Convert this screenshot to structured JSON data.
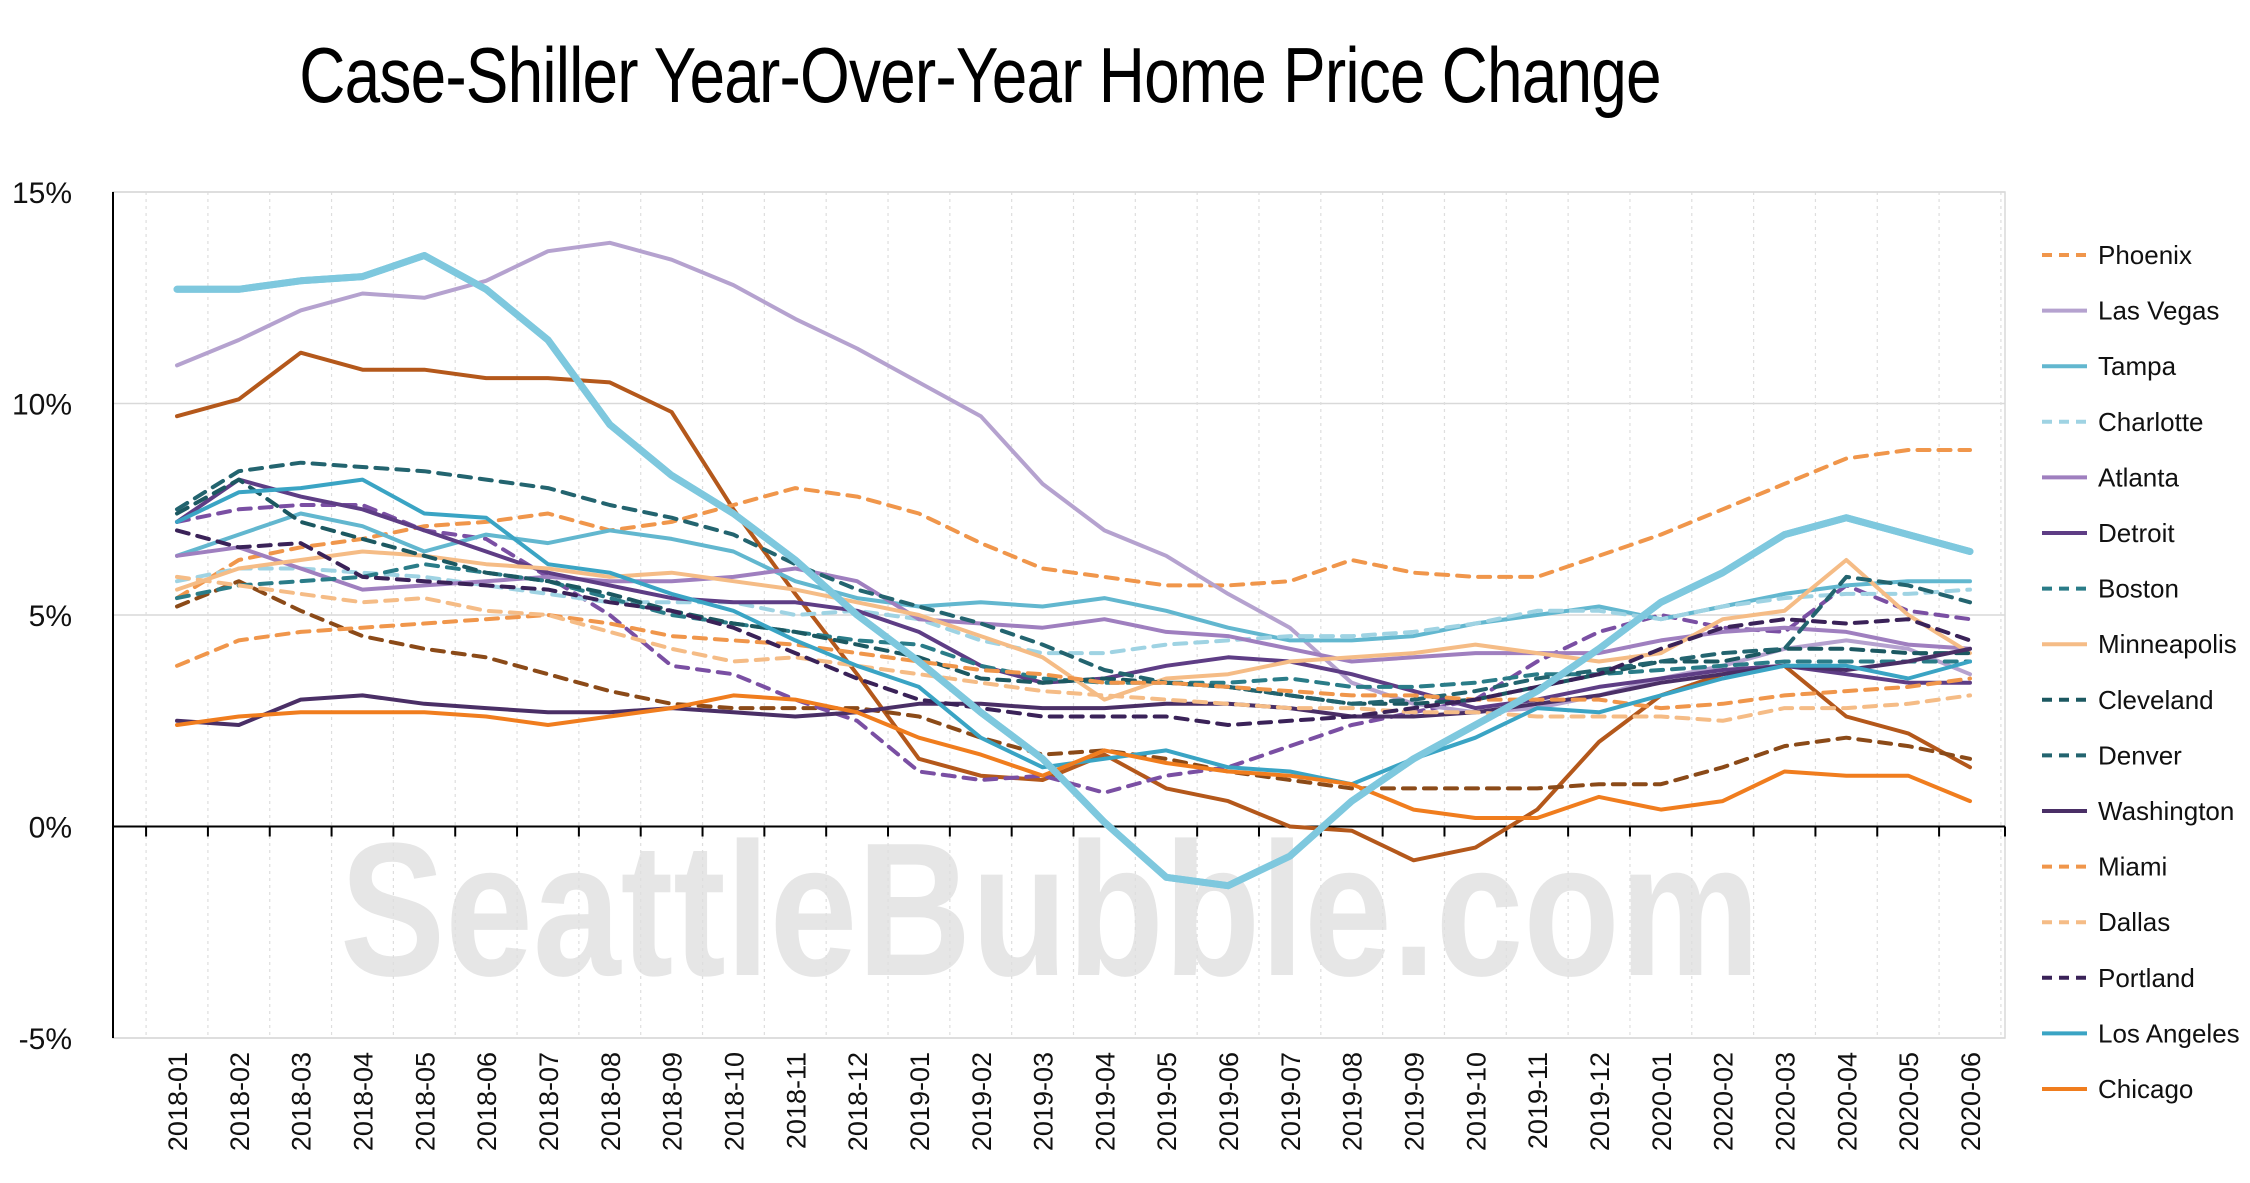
{
  "chart_data": {
    "type": "line",
    "title": "Case-Shiller Year-Over-Year Home Price Change",
    "watermark": "SeattleBubble.com",
    "xlabel": "",
    "ylabel": "",
    "ylim": [
      -5,
      15
    ],
    "y_ticks": [
      "15%",
      "10%",
      "5%",
      "0%",
      "-5%"
    ],
    "grid": true,
    "legend_position": "right",
    "categories": [
      "2018-01",
      "2018-02",
      "2018-03",
      "2018-04",
      "2018-05",
      "2018-06",
      "2018-07",
      "2018-08",
      "2018-09",
      "2018-10",
      "2018-11",
      "2018-12",
      "2019-01",
      "2019-02",
      "2019-03",
      "2019-04",
      "2019-05",
      "2019-06",
      "2019-07",
      "2019-08",
      "2019-09",
      "2019-10",
      "2019-11",
      "2019-12",
      "2020-01",
      "2020-02",
      "2020-03",
      "2020-04",
      "2020-05",
      "2020-06"
    ],
    "series": [
      {
        "name": "Phoenix",
        "color": "#f0964b",
        "style": "dashed",
        "values": [
          5.4,
          6.3,
          6.6,
          6.8,
          7.1,
          7.2,
          7.4,
          7.0,
          7.2,
          7.6,
          8.0,
          7.8,
          7.4,
          6.7,
          6.1,
          5.9,
          5.7,
          5.7,
          5.8,
          6.3,
          6.0,
          5.9,
          5.9,
          6.4,
          6.9,
          7.5,
          8.1,
          8.7,
          8.9,
          8.9
        ]
      },
      {
        "name": "Las Vegas",
        "color": "#b5a2cf",
        "style": "solid",
        "values": [
          10.9,
          11.5,
          12.2,
          12.6,
          12.5,
          12.9,
          13.6,
          13.8,
          13.4,
          12.8,
          12.0,
          11.3,
          10.5,
          9.7,
          8.1,
          7.0,
          6.4,
          5.5,
          4.7,
          3.4,
          2.9,
          2.7,
          2.8,
          3.1,
          3.5,
          3.8,
          4.2,
          4.4,
          4.2,
          3.6
        ]
      },
      {
        "name": "Tampa",
        "color": "#62b7cf",
        "style": "solid",
        "values": [
          6.4,
          6.9,
          7.4,
          7.1,
          6.5,
          6.9,
          6.7,
          7.0,
          6.8,
          6.5,
          5.8,
          5.4,
          5.2,
          5.3,
          5.2,
          5.4,
          5.1,
          4.7,
          4.4,
          4.4,
          4.5,
          4.8,
          5.0,
          5.2,
          4.9,
          5.2,
          5.5,
          5.7,
          5.8,
          5.8
        ]
      },
      {
        "name": "Charlotte",
        "color": "#9fd3e3",
        "style": "dashed",
        "values": [
          5.8,
          6.1,
          6.1,
          6.0,
          5.9,
          5.7,
          5.5,
          5.3,
          5.3,
          5.3,
          5.0,
          5.1,
          4.9,
          4.4,
          4.1,
          4.1,
          4.3,
          4.4,
          4.5,
          4.5,
          4.6,
          4.8,
          5.1,
          5.1,
          4.9,
          5.2,
          5.4,
          5.5,
          5.5,
          5.6
        ]
      },
      {
        "name": "Atlanta",
        "color": "#9f7fbf",
        "style": "solid",
        "values": [
          6.4,
          6.6,
          6.1,
          5.6,
          5.7,
          5.8,
          5.9,
          5.8,
          5.8,
          5.9,
          6.1,
          5.8,
          4.9,
          4.8,
          4.7,
          4.9,
          4.6,
          4.5,
          4.2,
          3.9,
          4.0,
          4.1,
          4.1,
          4.1,
          4.4,
          4.6,
          4.7,
          4.6,
          4.3,
          4.2
        ]
      },
      {
        "name": "Detroit",
        "color": "#5e3d85",
        "style": "solid",
        "values": [
          7.2,
          8.2,
          7.8,
          7.5,
          7.0,
          6.5,
          6.0,
          5.7,
          5.4,
          5.3,
          5.3,
          5.1,
          4.6,
          3.8,
          3.4,
          3.5,
          3.8,
          4.0,
          3.9,
          3.6,
          3.2,
          2.8,
          3.0,
          3.3,
          3.5,
          3.7,
          3.8,
          3.6,
          3.4,
          3.4
        ]
      },
      {
        "name": "Boston",
        "color": "#2a7c88",
        "style": "dashed",
        "values": [
          5.4,
          5.7,
          5.8,
          5.9,
          6.2,
          6.0,
          5.8,
          5.4,
          5.0,
          4.8,
          4.6,
          4.4,
          4.3,
          3.8,
          3.5,
          3.4,
          3.4,
          3.4,
          3.5,
          3.3,
          3.3,
          3.4,
          3.6,
          3.6,
          3.7,
          3.8,
          3.9,
          3.9,
          3.9,
          3.9
        ]
      },
      {
        "name": "Minneapolis",
        "color": "#f5bc86",
        "style": "solid",
        "values": [
          5.6,
          6.1,
          6.3,
          6.5,
          6.4,
          6.2,
          6.1,
          5.9,
          6.0,
          5.8,
          5.6,
          5.3,
          5.0,
          4.5,
          4.0,
          3.0,
          3.5,
          3.6,
          3.9,
          4.0,
          4.1,
          4.3,
          4.1,
          3.9,
          4.1,
          4.9,
          5.1,
          6.3,
          5.0,
          4.1
        ]
      },
      {
        "name": "Cleveland",
        "color": "#1c5861",
        "style": "dashed",
        "values": [
          7.4,
          8.2,
          7.2,
          6.8,
          6.4,
          6.0,
          5.8,
          5.5,
          5.1,
          4.8,
          4.6,
          4.3,
          4.0,
          3.5,
          3.4,
          3.5,
          3.4,
          3.3,
          3.1,
          2.9,
          2.9,
          3.0,
          3.3,
          3.6,
          3.9,
          3.9,
          4.2,
          4.2,
          4.1,
          4.1
        ]
      },
      {
        "name": "Denver",
        "color": "#23646f",
        "style": "dashed",
        "values": [
          7.5,
          8.4,
          8.6,
          8.5,
          8.4,
          8.2,
          8.0,
          7.6,
          7.3,
          6.9,
          6.2,
          5.6,
          5.2,
          4.8,
          4.3,
          3.7,
          3.4,
          3.3,
          3.1,
          2.9,
          3.0,
          3.2,
          3.5,
          3.7,
          3.9,
          4.1,
          4.2,
          5.9,
          5.7,
          5.3
        ]
      },
      {
        "name": "Washington",
        "color": "#4a2f66",
        "style": "solid",
        "values": [
          2.5,
          2.4,
          3.0,
          3.1,
          2.9,
          2.8,
          2.7,
          2.7,
          2.8,
          2.7,
          2.6,
          2.7,
          2.9,
          2.9,
          2.8,
          2.8,
          2.9,
          2.9,
          2.8,
          2.6,
          2.6,
          2.7,
          2.9,
          3.1,
          3.4,
          3.6,
          3.8,
          3.7,
          3.9,
          4.2
        ]
      },
      {
        "name": "Miami",
        "color": "#f0964b",
        "style": "dashed",
        "values": [
          3.8,
          4.4,
          4.6,
          4.7,
          4.8,
          4.9,
          5.0,
          4.8,
          4.5,
          4.4,
          4.3,
          4.1,
          3.9,
          3.7,
          3.6,
          3.4,
          3.4,
          3.3,
          3.2,
          3.1,
          3.1,
          3.0,
          3.0,
          3.0,
          2.8,
          2.9,
          3.1,
          3.2,
          3.3,
          3.5
        ]
      },
      {
        "name": "Dallas",
        "color": "#f5bc86",
        "style": "dashed",
        "values": [
          5.9,
          5.7,
          5.5,
          5.3,
          5.4,
          5.1,
          5.0,
          4.6,
          4.2,
          3.9,
          4.0,
          3.8,
          3.6,
          3.4,
          3.2,
          3.1,
          3.0,
          2.9,
          2.8,
          2.8,
          2.7,
          2.7,
          2.6,
          2.6,
          2.6,
          2.5,
          2.8,
          2.8,
          2.9,
          3.1
        ]
      },
      {
        "name": "Portland",
        "color": "#3a2258",
        "style": "dashed",
        "values": [
          7.0,
          6.6,
          6.7,
          5.9,
          5.8,
          5.7,
          5.6,
          5.3,
          5.1,
          4.7,
          4.1,
          3.5,
          3.0,
          2.8,
          2.6,
          2.6,
          2.6,
          2.4,
          2.5,
          2.6,
          2.8,
          3.0,
          3.3,
          3.6,
          4.2,
          4.7,
          4.9,
          4.8,
          4.9,
          4.4
        ]
      },
      {
        "name": "Los Angeles",
        "color": "#3aa4c4",
        "style": "solid",
        "values": [
          7.2,
          7.9,
          8.0,
          8.2,
          7.4,
          7.3,
          6.2,
          6.0,
          5.5,
          5.1,
          4.4,
          3.8,
          3.3,
          2.1,
          1.4,
          1.6,
          1.8,
          1.4,
          1.3,
          1.0,
          1.6,
          2.1,
          2.8,
          2.7,
          3.1,
          3.5,
          3.8,
          3.8,
          3.5,
          3.9
        ]
      },
      {
        "name": "Chicago",
        "color": "#f07d1e",
        "style": "solid",
        "values": [
          2.4,
          2.6,
          2.7,
          2.7,
          2.7,
          2.6,
          2.4,
          2.6,
          2.8,
          3.1,
          3.0,
          2.7,
          2.1,
          1.7,
          1.2,
          1.8,
          1.5,
          1.3,
          1.2,
          1.0,
          0.4,
          0.2,
          0.2,
          0.7,
          0.4,
          0.6,
          1.3,
          1.2,
          1.2,
          0.6
        ]
      }
    ],
    "extra_lines": [
      {
        "name": "",
        "color": "#7ec8de",
        "style": "solid",
        "width": 7,
        "values": [
          12.7,
          12.7,
          12.9,
          13.0,
          13.5,
          12.7,
          11.5,
          9.5,
          8.3,
          7.4,
          6.3,
          5.0,
          3.9,
          2.7,
          1.6,
          0.1,
          -1.2,
          -1.4,
          -0.7,
          0.6,
          1.6,
          2.4,
          3.2,
          4.2,
          5.3,
          6.0,
          6.9,
          7.3,
          6.9,
          6.5
        ]
      },
      {
        "name": "",
        "color": "#b4581b",
        "style": "solid",
        "width": 4,
        "values": [
          9.7,
          10.1,
          11.2,
          10.8,
          10.8,
          10.6,
          10.6,
          10.5,
          9.8,
          7.5,
          5.5,
          3.6,
          1.6,
          1.2,
          1.1,
          1.7,
          0.9,
          0.6,
          0.0,
          -0.1,
          -0.8,
          -0.5,
          0.4,
          2.0,
          3.1,
          3.6,
          3.8,
          2.6,
          2.2,
          1.4
        ]
      },
      {
        "name": "",
        "color": "#8b4a18",
        "style": "dashed",
        "width": 4,
        "values": [
          5.2,
          5.8,
          5.1,
          4.5,
          4.2,
          4.0,
          3.6,
          3.2,
          2.9,
          2.8,
          2.8,
          2.8,
          2.6,
          2.1,
          1.7,
          1.8,
          1.6,
          1.3,
          1.1,
          0.9,
          0.9,
          0.9,
          0.9,
          1.0,
          1.0,
          1.4,
          1.9,
          2.1,
          1.9,
          1.6
        ]
      },
      {
        "name": "",
        "color": "#7a4fa3",
        "style": "dashed",
        "width": 4,
        "values": [
          7.2,
          7.5,
          7.6,
          7.6,
          7.0,
          6.8,
          5.9,
          5.0,
          3.8,
          3.6,
          3.0,
          2.5,
          1.3,
          1.1,
          1.2,
          0.8,
          1.2,
          1.4,
          1.9,
          2.4,
          2.7,
          3.0,
          3.9,
          4.6,
          5.0,
          4.7,
          4.6,
          5.7,
          5.1,
          4.9
        ]
      }
    ]
  }
}
